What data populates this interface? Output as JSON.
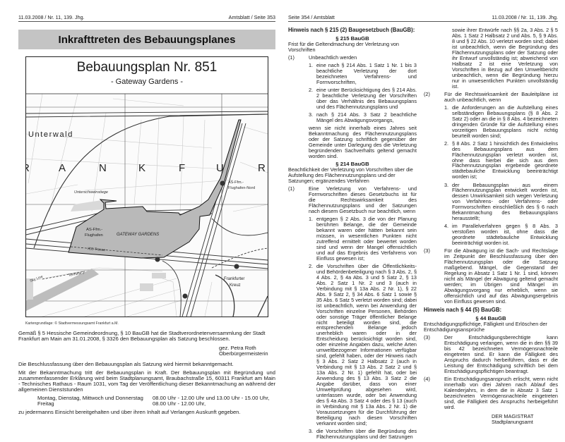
{
  "left_page": {
    "header_left": "11.03.2008 / Nr. 11, 139. Jhg.",
    "header_right": "Amtsblatt / Seite 353",
    "banner": "Inkrafttreten des Bebauungsplanes",
    "plan_title": "Bebauungsplan Nr. 851",
    "plan_subtitle": "- Gateway Gardens -",
    "map": {
      "labels": {
        "unterwald": "Unterwald",
        "city_letters": [
          "R",
          "A",
          "N",
          "K",
          "F",
          "U",
          "R"
        ],
        "unterschweinstiege": "Unterschweinstiege",
        "as_nord_1": "AS-Ffm.-",
        "as_nord_2": "Flughafen-Nord",
        "as_flughafen_1": "AS-Ffm.-",
        "as_flughafen_2": "Flughafen",
        "gateway": "GATEWAY GARDENS",
        "ice": "ICE-Trasse",
        "kreuz_1": "Frankfurter",
        "kreuz_2": "Kreuz",
        "terminal": "Terminal 2",
        "skyline": "Sky Line"
      },
      "colors": {
        "plan_area": "#b9b9b9",
        "built_area": "#d4d4d4"
      }
    },
    "caption": "Kartengrundlage: © Stadtvermessungsamt Frankfurt a.M.",
    "resolution": "Gemäß § 5 Hessische Gemeindeordnung, § 10 BauGB hat die Stadtverordnetenversammlung der Stadt Frankfurt am Main am 31.01.2008, § 3326 den Bebauungsplan als Satzung beschlossen.",
    "signature_name": "gez. Petra Roth",
    "signature_role": "Oberbürgermeisterin",
    "announcement": "Die Beschlussfassung über den Bebauungsplan als Satzung wird hiermit bekanntgemacht.",
    "inspection": "Mit der Bekanntmachung tritt der Bebauungsplan in Kraft. Der Bebauungsplan mit Begründung und zusammenfassender Erklärung wird beim Stadtplanungsamt, Braubachstraße 15, 60311 Frankfurt am Main - Technisches Rathaus - Raum 1031, vom Tag der Veröffentlichung dieser Bekanntmachung an während der allgemeinen Dienststunden",
    "hours": [
      {
        "days": "Montag, Dienstag, Mittwoch und Donnerstag",
        "times": "08.00 Uhr - 12.00 Uhr und 13.00 Uhr - 15.00 Uhr,"
      },
      {
        "days": "Freitag",
        "times": "08.00 Uhr - 12.00 Uhr,"
      }
    ],
    "closing": "zu jedermanns Einsicht bereitgehalten und über ihren Inhalt auf Verlangen Auskunft gegeben."
  },
  "right_page": {
    "header_left": "Seite 354 / Amtsblatt",
    "header_right": "11.03.2008 / Nr. 11, 139. Jhg.",
    "s215": {
      "heading": "Hinweis nach § 215 (2) Baugesetzbuch (BauGB):",
      "title": "§ 215 BauGB",
      "subtitle": "Frist für die Geltendmachung der Verletzung von Vorschriften",
      "p1_num": "(1)",
      "p1_text": "Unbeachtlich werden",
      "items": [
        {
          "num": "1.",
          "text": "eine nach § 214 Abs. 1 Satz 1 Nr. 1 bis 3 beachtliche Verletzung der dort bezeichneten Verfahrens- und Formvorschriften,"
        },
        {
          "num": "2.",
          "text": "eine unter Berücksichtigung des § 214 Abs. 2 beachtliche Verletzung der Vorschriften über das Verhältnis des Bebauungsplans und des Flächennutzungsplans und"
        },
        {
          "num": "3.",
          "text": "nach § 214 Abs. 3 Satz 2 beachtliche Mängel des Abwägungsvorgangs,"
        }
      ],
      "closing": "wenn sie nicht innerhalb eines Jahres seit Bekanntmachung des Flächennutzungsplans oder der Satzung schriftlich gegenüber der Gemeinde unter Darlegung des die Verletzung begründenden Sachverhalts geltend gemacht worden sind."
    },
    "s214": {
      "title": "§ 214 BauGB",
      "subtitle": "Beachtlichkeit der Verletzung von Vorschriften über die Aufstellung des Flächennutzungsplans und der Satzungen; ergänzendes Verfahren",
      "p1": {
        "num": "(1)",
        "text": "Eine Verletzung von Verfahrens- und Formvorschriften dieses Gesetzbuchs ist für die Rechtswirksamkeit des Flächennutzungsplans und der Satzungen nach diesem Gesetzbuch nur beachtlich, wenn",
        "items": [
          {
            "num": "1.",
            "text": "entgegen § 2 Abs. 3 die von der Planung berührten Belange, die der Gemeinde bekannt waren oder hätten bekannt sein müssen, in wesentlichen Punkten nicht zutreffend ermittelt oder bewertet worden sind und wenn der Mangel offensichtlich und auf das Ergebnis des Verfahrens von Einfluss gewesen ist;"
          },
          {
            "num": "2.",
            "text": "die Vorschriften über die Öffentlichkeits- und Behördenbeteiligung nach § 3 Abs. 2, § 4 Abs. 2, § 4a Abs. 3 und 5 Satz 2, § 13 Abs. 2 Satz 1 Nr. 2 und 3 (auch in Verbindung mit § 13a Abs. 2 Nr. 1), § 22 Abs. 9 Satz 2, § 34 Abs. 6 Satz 1 sowie § 35 Abs. 6 Satz 5 verletzt worden sind; dabei ist unbeachtlich, wenn bei Anwendung der Vorschriften einzelne Personen, Behörden oder sonstige Träger öffentlicher Belange nicht beteiligt worden sind, die entsprechenden Belange jedoch unerheblich waren oder in der Entscheidung berücksichtigt worden sind, oder einzelne Angaben dazu, welche Arten umweltbezogener Informationen verfügbar sind, gefehlt haben, oder der Hinweis nach § 3 Abs. 2 Satz 2 Halbsatz 2 (auch in Verbindung mit § 13 Abs. 2 Satz 2 und § 13a Abs. 2 Nr. 1) gefehlt hat, oder bei Anwendung des § 13 Abs. 3 Satz 2 die Angabe darüber, dass von einer Umweltprüfung abgesehen wird, unterlassen wurde, oder bei Anwendung des § 4a Abs. 3 Satz 4 oder des § 13 (auch in Verbindung mit § 13a Abs. 2 Nr. 1) die Voraussetzungen für die Durchführung der Beteiligung nach diesen Vorschriften verkannt worden sind;"
          },
          {
            "num": "3.",
            "text": "die Vorschriften über die Begründung des Flächennutzungsplans und der Satzungen",
            "continuation": "sowie ihrer Entwürfe nach §§ 2a, 3 Abs. 2 § 5 Abs. 1 Satz 2 Halbsatz 2 und Abs. 5, § 9 Abs. 8 und § 22 Abs. 10 verletzt worden sind; dabei ist unbeachtlich, wenn die Begründung des Flächennutzungsplans oder der Satzung oder ihr Entwurf unvollständig ist; abweichend von Halbsatz 2 ist eine Verletzung von Vorschriften in Bezug auf den Umweltbericht unbeachtlich, wenn die Begründung hierzu nur in unwesentlichen Punkten unvollständig ist."
          }
        ]
      },
      "p2": {
        "num": "(2)",
        "text": "Für die Rechtswirksamkeit der Bauleitpläne ist auch unbeachtlich, wenn",
        "items": [
          {
            "num": "1.",
            "text": "die Anforderungen an die Aufstellung eines selbständigen Bebauungsplans (§ 8 Abs. 2 Satz 2) oder an die in § 8 Abs. 4 bezeichneten dringenden Gründe für die Aufstellung eines vorzeitigen Bebauungsplans nicht richtig beurteilt worden sind;"
          },
          {
            "num": "2.",
            "text": "§ 8 Abs. 2 Satz 1 hinsichtlich des Entwickelns des Bebauungsplans aus dem Flächennutzungsplan verletzt worden ist, ohne dass hierbei die sich aus dem Flächennutzungsplan ergebende geordnete städtebauliche Entwicklung beeinträchtigt worden ist;"
          },
          {
            "num": "3.",
            "text": "der Bebauungsplan aus einem Flächennutzungsplan entwickelt worden ist, dessen Unwirksamkeit sich wegen Verletzung von Verfahrens- oder Verfahrens- oder Formvorschriften einschließlich des § 6 nach Bekanntmachung des Bebauungsplans herausstellt;"
          },
          {
            "num": "4.",
            "text": "im Parallelverfahren gegen § 8 Abs. 3 verstoßen worden ist, ohne dass die geordnete städtebauliche Entwicklung beeinträchtigt worden ist."
          }
        ]
      },
      "p3": {
        "num": "(3)",
        "text": "Für die Abwägung ist die Sach- und Rechtslage im Zeitpunkt der Beschlussfassung über den Flächennutzungsplan oder die Satzung maßgebend. Mängel, die Gegenstand der Regelung in Absatz 1 Satz 1 Nr. 1 sind, können nicht als Mängel der Abwägung geltend gemacht werden; im Übrigen sind Mängel im Abwägungsvorgang nur erheblich, wenn sie offensichtlich und auf das Abwägungsergebnis von Einfluss gewesen sind."
      }
    },
    "s44": {
      "heading": "Hinweis nach § 44 (5) BauGB:",
      "title": "§ 44 BauGB",
      "subtitle": "Entschädigungspflichtige, Fälligkeit und Erlöschen der Entschädigungsansprüche",
      "p3": {
        "num": "(3)",
        "text": "Der Entschädigungsberechtigte kann Entschädigung verlangen, wenn die in den §§ 39 bis 42 bezeichneten Vermögensnachteile eingetreten sind. Er kann die Fälligkeit des Anspruchs dadurch herbeiführen, dass er die Leistung der Entschädigung schriftlich bei dem Entschädigungspflichtigen beantragt."
      },
      "p4": {
        "num": "(4)",
        "text": "Ein Entschädigungsanspruch erlischt, wenn nicht innerhalb von drei Jahren nach Ablauf des Kalenderjahrs, in dem die in Absatz 3 Satz 1 bezeichneten Vermögensnachteile eingetreten sind, die Fälligkeit des Anspruchs herbeigeführt wird."
      }
    },
    "signature": [
      "DER MAGISTRAT",
      "Stadtplanungsamt"
    ]
  }
}
